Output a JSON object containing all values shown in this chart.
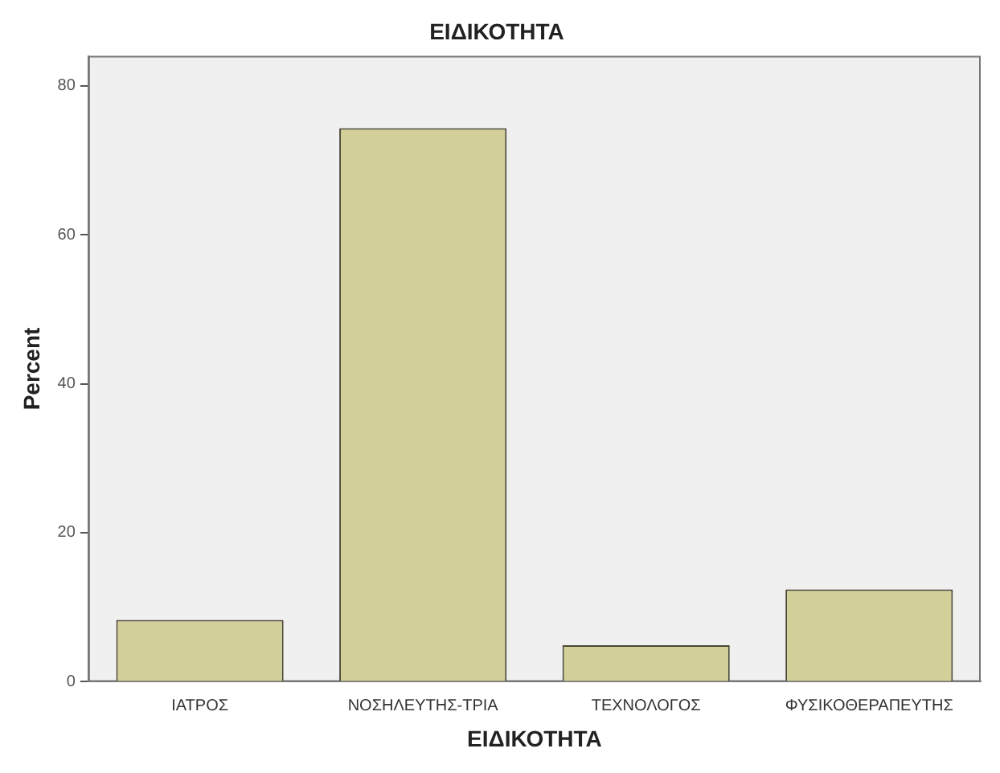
{
  "chart_data": {
    "type": "bar",
    "title": "ΕΙΔΙΚΟΤΗΤΑ",
    "xlabel": "ΕΙΔΙΚΟΤΗΤΑ",
    "ylabel": "Percent",
    "categories": [
      "ΙΑΤΡΟΣ",
      "ΝΟΣΗΛΕΥΤΗΣ-ΤΡΙΑ",
      "ΤΕΧΝΟΛΟΓΟΣ",
      "ΦΥΣΙΚΟΘΕΡΑΠΕΥΤΗΣ"
    ],
    "values": [
      8.3,
      74.3,
      4.9,
      12.4
    ],
    "color": "#d3cf98",
    "ylim": [
      0,
      84
    ],
    "yticks": [
      0,
      20,
      40,
      60,
      80
    ],
    "grid": false,
    "legend": false
  }
}
